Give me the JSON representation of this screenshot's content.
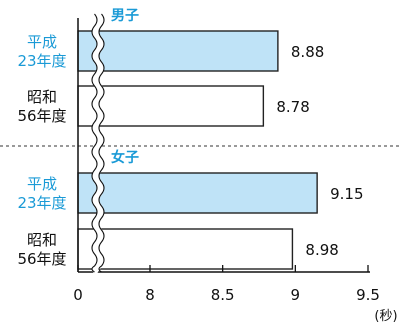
{
  "chart_data": {
    "type": "bar",
    "orientation": "horizontal",
    "unit_label": "(秒)",
    "axis_break": true,
    "xticks": [
      {
        "label": "0",
        "value": 0
      },
      {
        "label": "8",
        "value": 8
      },
      {
        "label": "8.5",
        "value": 8.5
      },
      {
        "label": "9",
        "value": 9
      },
      {
        "label": "9.5",
        "value": 9.5
      }
    ],
    "xlim_after_break": [
      8,
      9.5
    ],
    "groups": [
      {
        "name": "男子",
        "bars": [
          {
            "label_line1": "平成",
            "label_line2": "23年度",
            "value": 8.88,
            "value_label": "8.88",
            "fill": "#bfe3f7"
          },
          {
            "label_line1": "昭和",
            "label_line2": "56年度",
            "value": 8.78,
            "value_label": "8.78",
            "fill": "#ffffff"
          }
        ]
      },
      {
        "name": "女子",
        "bars": [
          {
            "label_line1": "平成",
            "label_line2": "23年度",
            "value": 9.15,
            "value_label": "9.15",
            "fill": "#bfe3f7"
          },
          {
            "label_line1": "昭和",
            "label_line2": "56年度",
            "value": 8.98,
            "value_label": "8.98",
            "fill": "#ffffff"
          }
        ]
      }
    ],
    "colors": {
      "category_label": "#1a9ad6",
      "group_title": "#1a9ad6",
      "bar_stroke": "#222222",
      "highlight_fill": "#bfe3f7"
    }
  }
}
